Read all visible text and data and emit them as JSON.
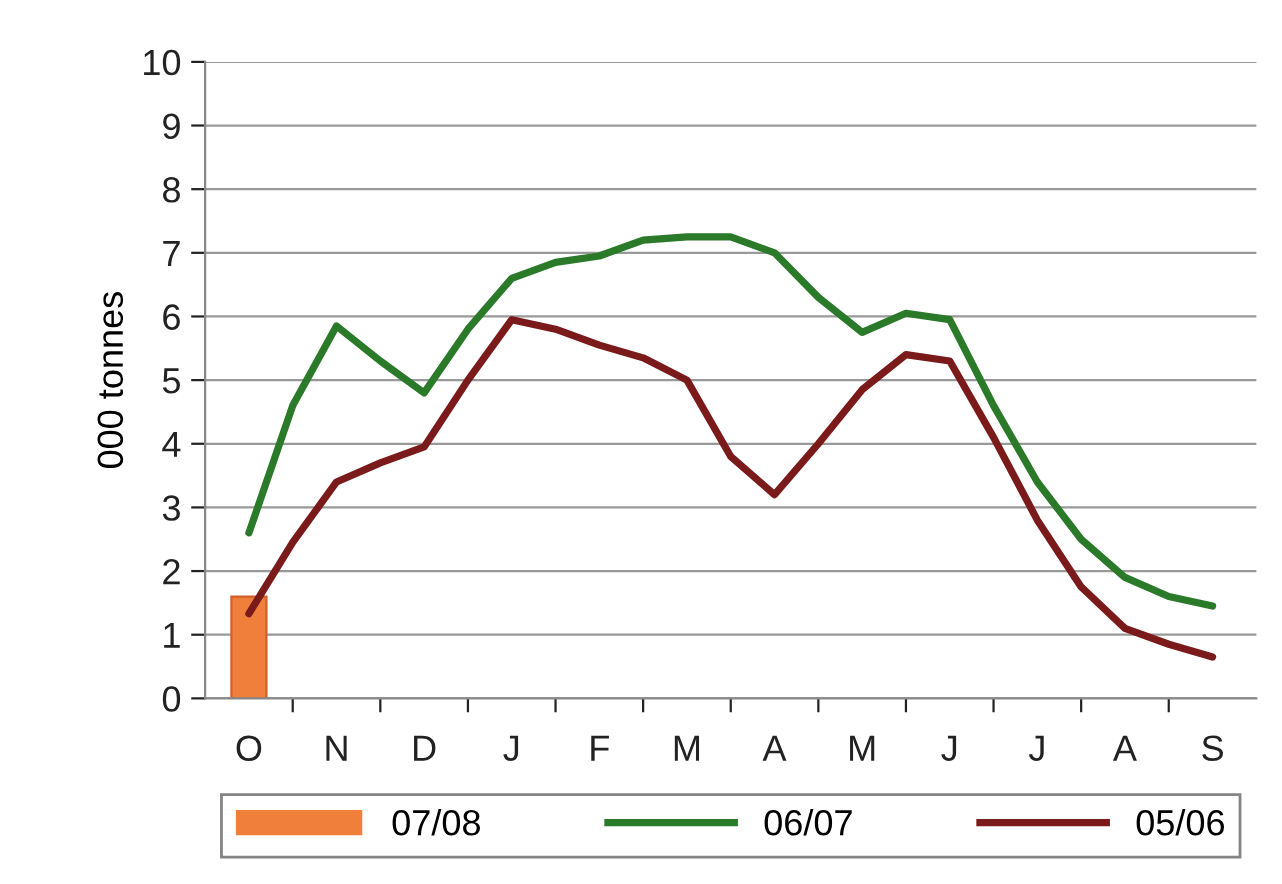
{
  "chart_data": {
    "type": "line",
    "ylabel": "000 tonnes",
    "categories": [
      "O",
      null,
      "N",
      null,
      "D",
      null,
      "J",
      null,
      "F",
      null,
      "M",
      null,
      "A",
      null,
      "M",
      null,
      "J",
      null,
      "J",
      null,
      "A",
      null,
      "S"
    ],
    "ylim": [
      0,
      10
    ],
    "yticks": [
      0,
      1,
      2,
      3,
      4,
      5,
      6,
      7,
      8,
      9,
      10
    ],
    "grid": "y",
    "legend": "bottom",
    "marker": "none",
    "line_style": "solid",
    "series": [
      {
        "name": "07/08",
        "type": "bar",
        "color": "#f07f3c",
        "values": [
          1.6,
          null,
          null,
          null,
          null,
          null,
          null,
          null,
          null,
          null,
          null,
          null,
          null,
          null,
          null,
          null,
          null,
          null,
          null,
          null,
          null,
          null,
          null
        ]
      },
      {
        "name": "06/07",
        "color": "#2a7a2a",
        "values": [
          2.6,
          4.6,
          5.85,
          5.3,
          4.8,
          5.8,
          6.6,
          6.85,
          6.95,
          7.2,
          7.25,
          7.25,
          7.0,
          6.3,
          5.75,
          6.05,
          5.95,
          4.6,
          3.4,
          2.5,
          1.9,
          1.6,
          1.45
        ]
      },
      {
        "name": "05/06",
        "color": "#7b1a1a",
        "values": [
          1.33,
          2.45,
          3.4,
          3.7,
          3.95,
          5.0,
          5.95,
          5.8,
          5.55,
          5.35,
          5.0,
          3.8,
          3.2,
          4.0,
          4.85,
          5.4,
          5.3,
          4.1,
          2.8,
          1.75,
          1.1,
          0.85,
          0.65
        ]
      }
    ]
  }
}
